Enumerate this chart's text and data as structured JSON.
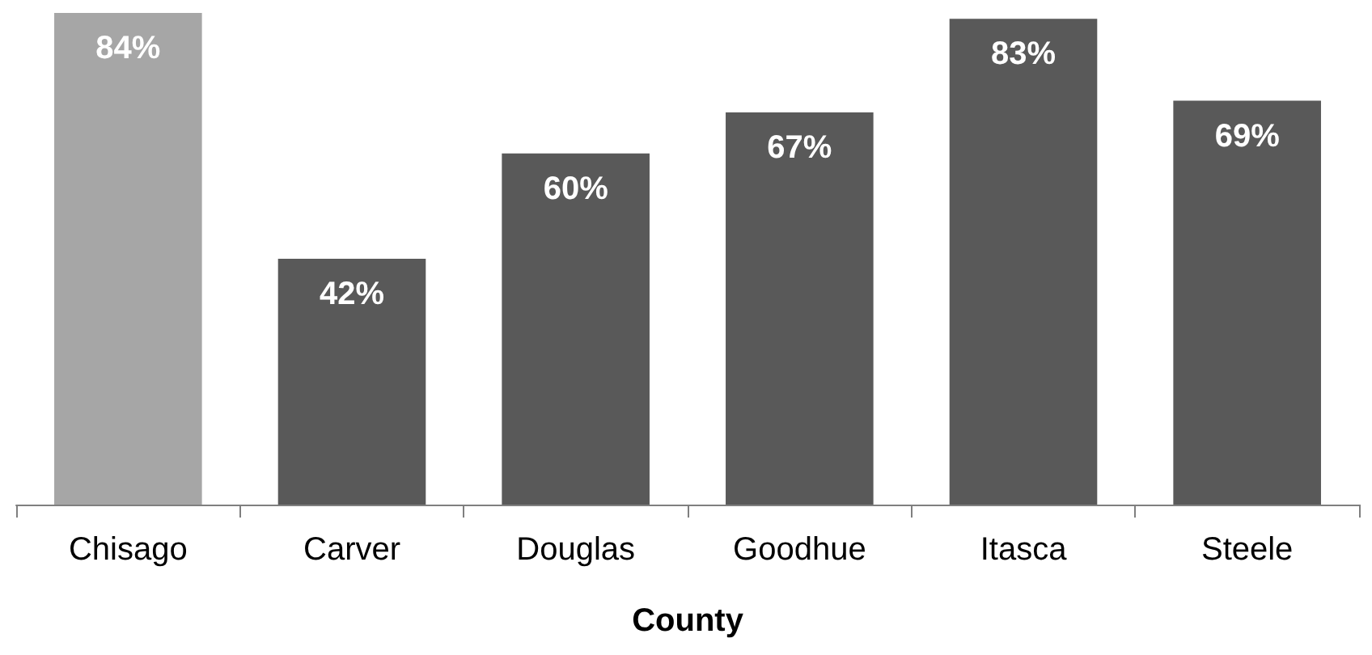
{
  "chart_data": {
    "type": "bar",
    "xlabel": "County",
    "categories": [
      "Chisago",
      "Carver",
      "Douglas",
      "Goodhue",
      "Itasca",
      "Steele"
    ],
    "values": [
      84,
      42,
      60,
      67,
      83,
      69
    ],
    "value_labels": [
      "84%",
      "42%",
      "60%",
      "67%",
      "83%",
      "69%"
    ],
    "colors": [
      "#a6a6a6",
      "#595959",
      "#595959",
      "#595959",
      "#595959",
      "#595959"
    ]
  }
}
